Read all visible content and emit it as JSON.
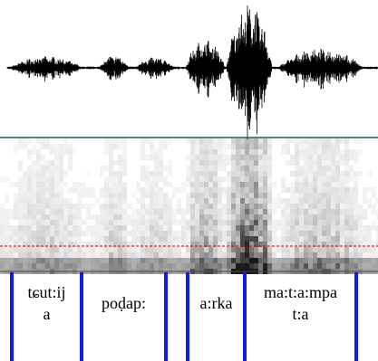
{
  "tier": {
    "intervals": [
      {
        "lines": [
          "tɕut:ij",
          "a"
        ]
      },
      {
        "lines": [
          "poḍap:"
        ]
      },
      {
        "lines": []
      },
      {
        "lines": [
          "a:rka"
        ]
      },
      {
        "lines": [
          "ma:t:a:mpa",
          "t:a"
        ]
      }
    ]
  }
}
